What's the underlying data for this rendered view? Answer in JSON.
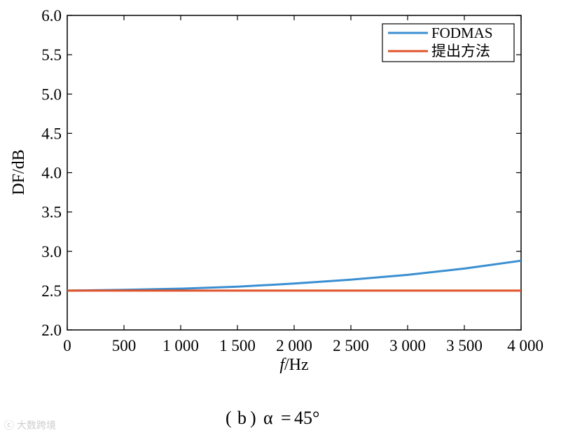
{
  "chart_data": {
    "type": "line",
    "xlabel_italic": "f",
    "xlabel_rest": "/Hz",
    "ylabel": "DF/dB",
    "xlim": [
      0,
      4000
    ],
    "ylim": [
      2.0,
      6.0
    ],
    "x_ticks": [
      {
        "value": 0,
        "label": "0"
      },
      {
        "value": 500,
        "label": "500"
      },
      {
        "value": 1000,
        "label": "1 000"
      },
      {
        "value": 1500,
        "label": "1 500"
      },
      {
        "value": 2000,
        "label": "2 000"
      },
      {
        "value": 2500,
        "label": "2 500"
      },
      {
        "value": 3000,
        "label": "3 000"
      },
      {
        "value": 3500,
        "label": "3 500"
      },
      {
        "value": 4000,
        "label": "4 000"
      }
    ],
    "y_ticks": [
      {
        "value": 2.0,
        "label": "2.0"
      },
      {
        "value": 2.5,
        "label": "2.5"
      },
      {
        "value": 3.0,
        "label": "3.0"
      },
      {
        "value": 3.5,
        "label": "3.5"
      },
      {
        "value": 4.0,
        "label": "4.0"
      },
      {
        "value": 4.5,
        "label": "4.5"
      },
      {
        "value": 5.0,
        "label": "5.0"
      },
      {
        "value": 5.5,
        "label": "5.5"
      },
      {
        "value": 6.0,
        "label": "6.0"
      }
    ],
    "grid": false,
    "legend_position": "top-right",
    "series": [
      {
        "name": "FODMAS",
        "color": "#3a8fd1",
        "x": [
          0,
          500,
          1000,
          1500,
          2000,
          2500,
          3000,
          3500,
          4000
        ],
        "y": [
          2.5,
          2.51,
          2.525,
          2.55,
          2.59,
          2.64,
          2.7,
          2.78,
          2.88
        ]
      },
      {
        "name": "提出方法",
        "color": "#e0522a",
        "x": [
          0,
          500,
          1000,
          1500,
          2000,
          2500,
          3000,
          3500,
          4000
        ],
        "y": [
          2.5,
          2.5,
          2.5,
          2.5,
          2.5,
          2.5,
          2.5,
          2.5,
          2.5
        ]
      }
    ]
  },
  "caption": {
    "paren_open": "(",
    "letter": "b",
    "paren_close": ")",
    "alpha": "α",
    "eq": "=",
    "value": "45°"
  },
  "watermark": "大数跨境"
}
